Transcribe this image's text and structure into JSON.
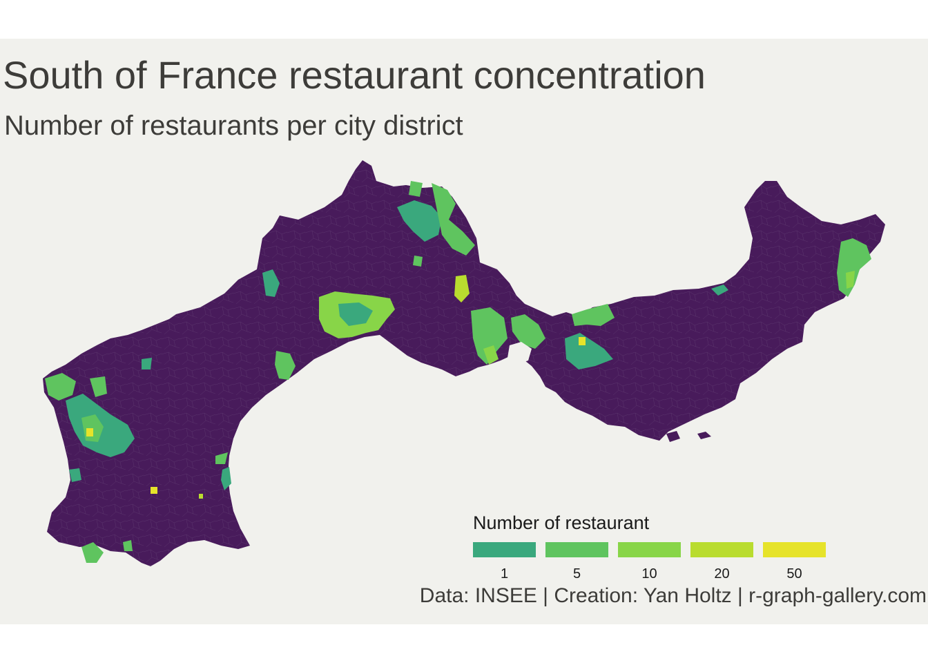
{
  "title": "South of France restaurant concentration",
  "subtitle": "Number of restaurants per city district",
  "caption": "Data: INSEE | Creation: Yan Holtz | r-graph-gallery.com",
  "colors": {
    "background": "#f1f1ed",
    "no_data": "#481b5b",
    "border": "#6a4a7c"
  },
  "legend": {
    "title": "Number of restaurant",
    "items": [
      {
        "label": "1",
        "color": "#3aa87d"
      },
      {
        "label": "5",
        "color": "#5fc45f"
      },
      {
        "label": "10",
        "color": "#88d548"
      },
      {
        "label": "20",
        "color": "#b9dc2f"
      },
      {
        "label": "50",
        "color": "#e6e32a"
      }
    ]
  }
}
